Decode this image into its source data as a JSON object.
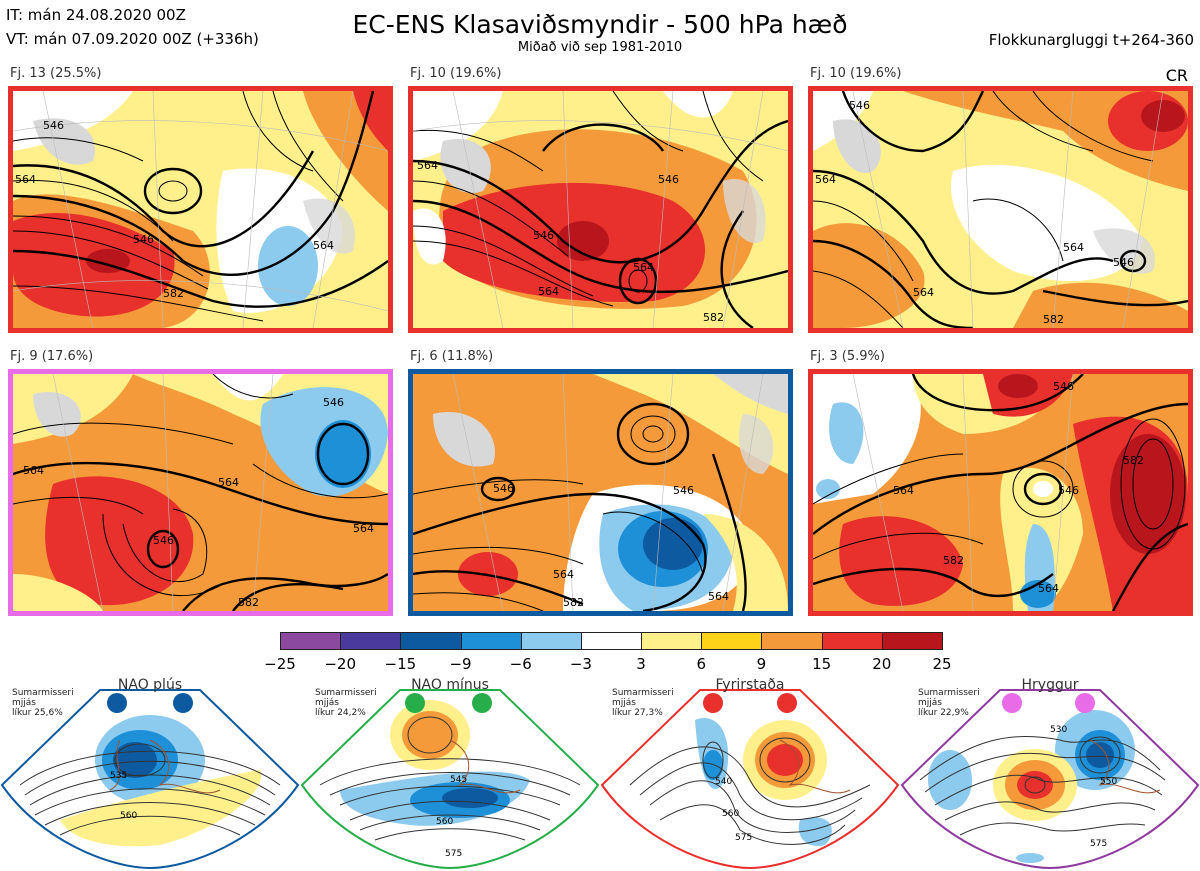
{
  "header": {
    "it_line": "IT: mán 24.08.2020 00Z",
    "vt_line": "VT: mán 07.09.2020 00Z  (+336h)",
    "title": "EC-ENS Klasaviðsmyndir - 500 hPa hæð",
    "subtitle": "Miðað við sep 1981-2010",
    "window": "Flokkunargluggi t+264-360",
    "cr": "CR"
  },
  "panels": [
    {
      "label": "Fj. 13 (25.5%)",
      "border": "#e8302c",
      "contours": [
        "546",
        "564",
        "582",
        "546",
        "564"
      ]
    },
    {
      "label": "Fj. 10 (19.6%)",
      "border": "#e8302c",
      "contours": [
        "546",
        "564",
        "564",
        "546",
        "582"
      ]
    },
    {
      "label": "Fj. 10 (19.6%)",
      "border": "#e8302c",
      "contours": [
        "564",
        "546",
        "564",
        "582"
      ]
    },
    {
      "label": "Fj. 9 (17.6%)",
      "border": "#e86ce8",
      "contours": [
        "546",
        "564",
        "546",
        "564",
        "582"
      ]
    },
    {
      "label": "Fj. 6 (11.8%)",
      "border": "#0e5aa0",
      "contours": [
        "546",
        "546",
        "564",
        "582"
      ]
    },
    {
      "label": "Fj. 3 (5.9%)",
      "border": "#e8302c",
      "contours": [
        "546",
        "564",
        "582",
        "564",
        "582"
      ]
    }
  ],
  "colorbar": {
    "labels": [
      "−25",
      "−20",
      "−15",
      "−9",
      "−6",
      "−3",
      "3",
      "6",
      "9",
      "15",
      "20",
      "25"
    ],
    "colors": [
      "#8b4aa0",
      "#4a3a9e",
      "#0e5aa0",
      "#1e90d8",
      "#8ccaee",
      "#ffffff",
      "#fff08c",
      "#ffd21a",
      "#f59a3a",
      "#e8302c",
      "#b8161c"
    ]
  },
  "regimes": [
    {
      "name": "NAO plús",
      "note": "Sumarmisseri\nmjjás\nlíkur 25,6%",
      "color": "#0e5aa0",
      "contours": [
        "535",
        "560"
      ]
    },
    {
      "name": "NAO mínus",
      "note": "Sumarmisseri\nmjjás\nlíkur 24,2%",
      "color": "#27ae4a",
      "contours": [
        "545",
        "560",
        "575"
      ]
    },
    {
      "name": "Fyrirstaða",
      "note": "Sumarmisseri\nmjjás\nlíkur 27,3%",
      "color": "#e8302c",
      "contours": [
        "540",
        "560",
        "575"
      ]
    },
    {
      "name": "Hryggur",
      "note": "Sumarmisseri\nmjjás\nlíkur 22,9%",
      "color": "#e86ce8",
      "contours": [
        "530",
        "550",
        "575"
      ]
    }
  ]
}
